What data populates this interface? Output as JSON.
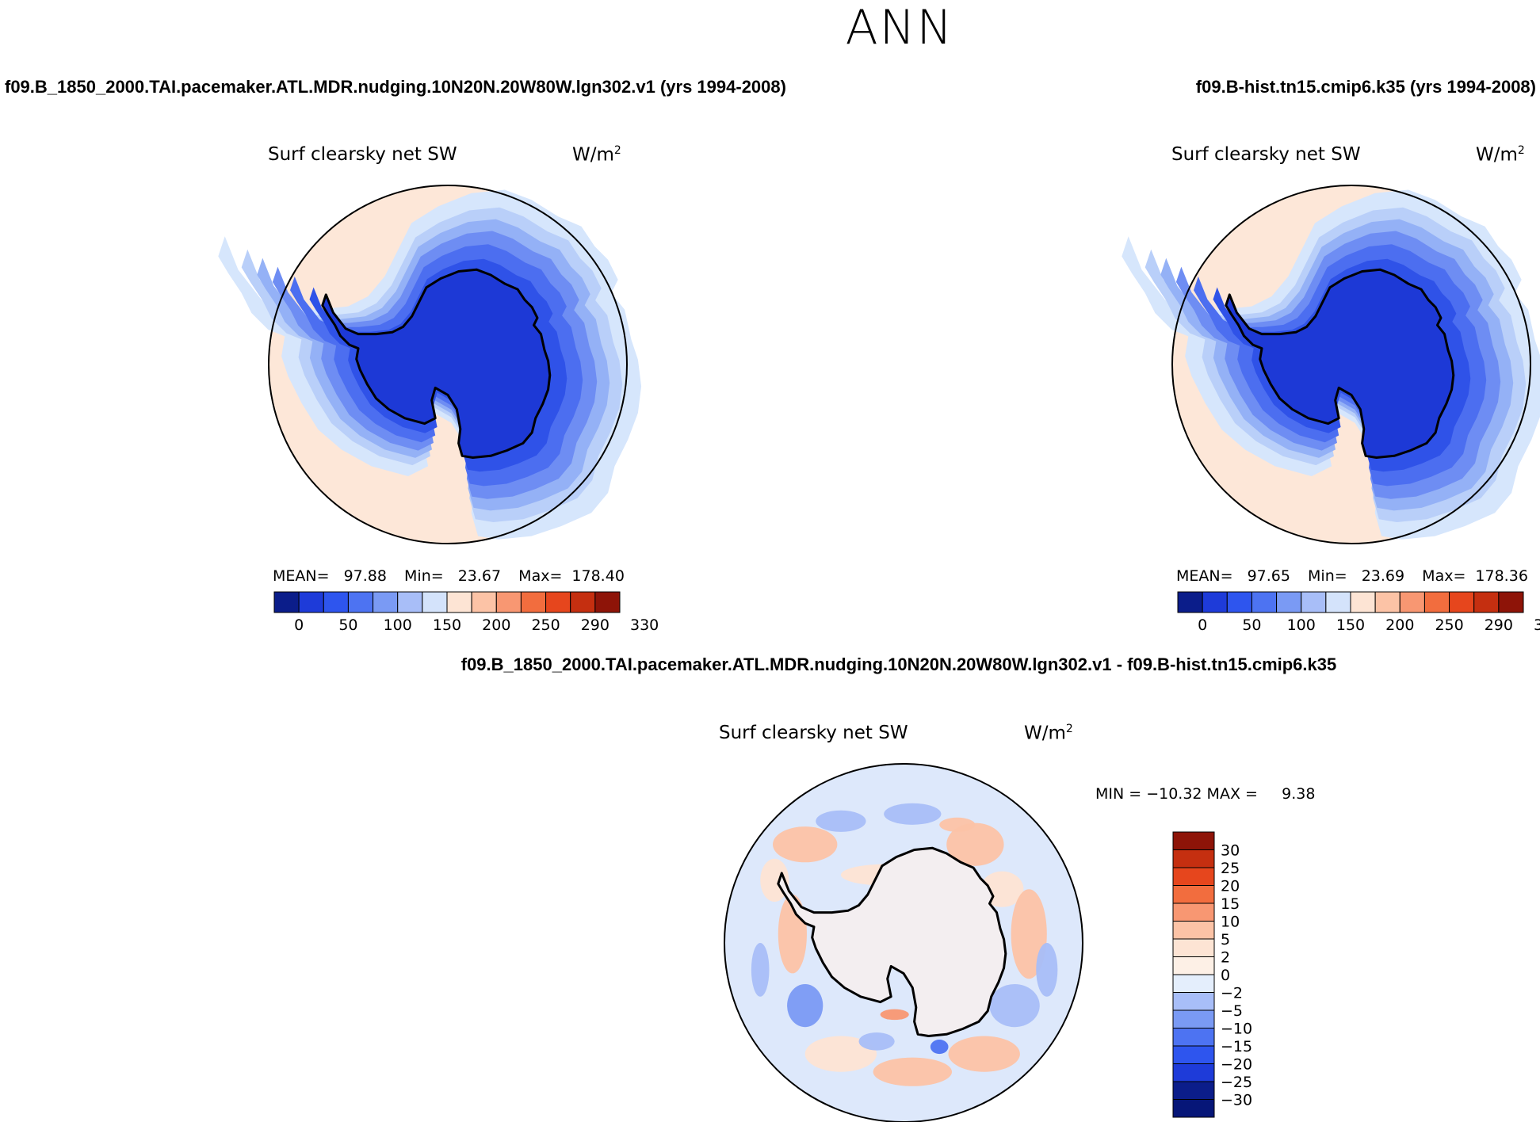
{
  "season": "ANN",
  "panels": [
    {
      "case_title": "f09.B_1850_2000.TAI.pacemaker.ATL.MDR.nudging.10N20N.20W80W.lgn302.v1 (yrs 1994-2008)",
      "variable": "Surf clearsky net SW",
      "units_base": "W/m",
      "units_sup": "2",
      "mean_label": "MEAN=",
      "mean": "97.88",
      "min_label": "Min=",
      "min": "23.67",
      "max_label": "Max=",
      "max": "178.40"
    },
    {
      "case_title": "f09.B-hist.tn15.cmip6.k35 (yrs 1994-2008)",
      "variable": "Surf clearsky net SW",
      "units_base": "W/m",
      "units_sup": "2",
      "mean_label": "MEAN=",
      "mean": "97.65",
      "min_label": "Min=",
      "min": "23.69",
      "max_label": "Max=",
      "max": "178.36"
    }
  ],
  "diff_panel": {
    "case_title": "f09.B_1850_2000.TAI.pacemaker.ATL.MDR.nudging.10N20N.20W80W.lgn302.v1 - f09.B-hist.tn15.cmip6.k35",
    "variable": "Surf clearsky net SW",
    "units_base": "W/m",
    "units_sup": "2",
    "minmax_text": "MIN = −10.32 MAX =     9.38"
  },
  "colorbar_abs": {
    "labels": [
      "0",
      "50",
      "100",
      "150",
      "200",
      "250",
      "290",
      "330"
    ],
    "colors": [
      "#0b1d8a",
      "#1e3bd9",
      "#2e55ee",
      "#4d73f2",
      "#7a9af4",
      "#a8bef8",
      "#d4e3fb",
      "#fde4d4",
      "#fcc3a6",
      "#f89772",
      "#f26d3e",
      "#e6461d",
      "#c52f10",
      "#8e1408"
    ]
  },
  "colorbar_diff": {
    "labels": [
      "30",
      "25",
      "20",
      "15",
      "10",
      "5",
      "2",
      "0",
      "−2",
      "−5",
      "−10",
      "−15",
      "−20",
      "−25",
      "−30"
    ],
    "colors": [
      "#8e1408",
      "#c52f10",
      "#e6461d",
      "#f26d3e",
      "#f89772",
      "#fcc3a6",
      "#fde4d4",
      "#fdf0e6",
      "#e4eefc",
      "#a8bef8",
      "#7a9af4",
      "#4d73f2",
      "#2e55ee",
      "#1e3bd9",
      "#0b1d8a",
      "#061678"
    ]
  },
  "colors": {
    "antarctica_fill": "#1d39d6",
    "ocean_far": "#d6e6fc",
    "diff_ocean": "#dde8fb"
  }
}
